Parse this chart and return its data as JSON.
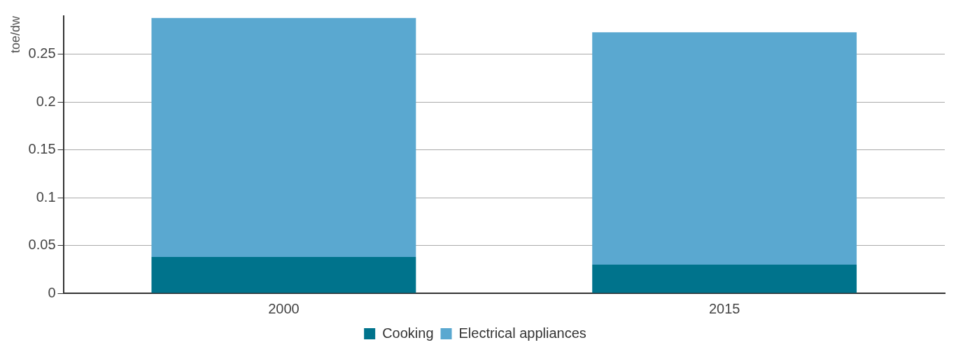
{
  "chart_data": {
    "type": "bar",
    "ylabel": "toe/dw",
    "categories": [
      "2000",
      "2015"
    ],
    "stacked": true,
    "series": [
      {
        "name": "Cooking",
        "color": "#00738c",
        "values": [
          0.038,
          0.03
        ]
      },
      {
        "name": "Electrical appliances",
        "color": "#5aa8d0",
        "values": [
          0.25,
          0.243
        ]
      }
    ],
    "ylim": [
      0,
      0.29
    ],
    "yticks": [
      0,
      0.05,
      0.1,
      0.15,
      0.2,
      0.25
    ],
    "grid": "y",
    "legend": "bottom"
  }
}
